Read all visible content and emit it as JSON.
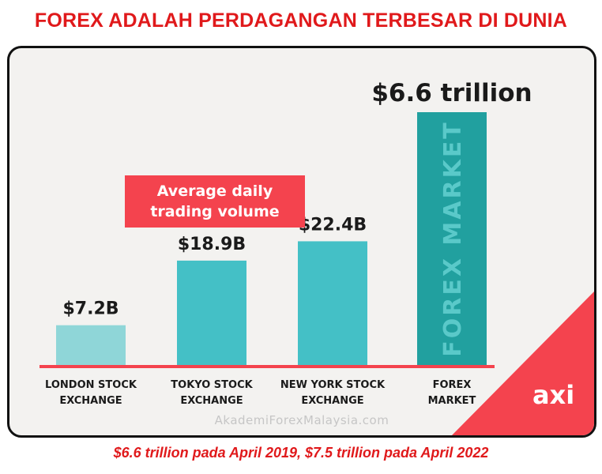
{
  "header": {
    "title": "FOREX ADALAH PERDAGANGAN TERBESAR DI DUNIA"
  },
  "footer": {
    "note": "$6.6 trillion pada April 2019, $7.5 trillion pada April 2022"
  },
  "watermark": "AkademiForexMalaysia.com",
  "logo": {
    "text": "axi",
    "icon": "axi-logo"
  },
  "colors": {
    "title_red": "#e0191b",
    "baseline_red": "#f4434e",
    "legend_red": "#f4434e",
    "london_bar": "#8fd6d8",
    "tokyo_bar": "#44c0c6",
    "newyork_bar": "#44c0c6",
    "forex_bar": "#21a09f",
    "card_bg": "#f3f2f0"
  },
  "chart_data": {
    "type": "bar",
    "legend": "Average daily trading volume",
    "legend_lines": [
      "Average daily",
      "trading volume"
    ],
    "unit": "USD billions",
    "categories": [
      [
        "LONDON STOCK",
        "EXCHANGE"
      ],
      [
        "TOKYO STOCK",
        "EXCHANGE"
      ],
      [
        "NEW YORK STOCK",
        "EXCHANGE"
      ],
      [
        "FOREX",
        "MARKET"
      ]
    ],
    "values": [
      7.2,
      18.9,
      22.4,
      6600
    ],
    "value_labels": [
      "$7.2B",
      "$18.9B",
      "$22.4B",
      "$6.6 trillion"
    ],
    "bar_inner_label": "FOREX MARKET",
    "grid": false
  }
}
